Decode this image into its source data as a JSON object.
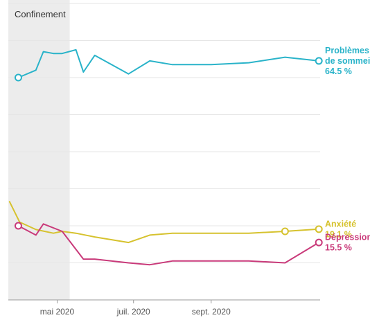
{
  "chart_data": {
    "type": "line",
    "title": "",
    "xlabel": "",
    "ylabel": "",
    "x_range": [
      "2020-03-23",
      "2020-11-27"
    ],
    "y_range": [
      0,
      80
    ],
    "grid": "horizontal",
    "x_ticks": [
      {
        "date": "2020-05-01",
        "label": "mai 2020"
      },
      {
        "date": "2020-07-01",
        "label": "juil. 2020"
      },
      {
        "date": "2020-09-01",
        "label": "sept. 2020"
      }
    ],
    "y_gridlines": [
      10,
      20,
      30,
      40,
      50,
      60,
      70,
      80
    ],
    "annotations": [
      {
        "type": "shaded-period",
        "label": "Confinement",
        "start": "2020-03-23",
        "end": "2020-05-11"
      }
    ],
    "series": [
      {
        "name_lines": [
          "Problèmes",
          "de sommeil"
        ],
        "value_label": "64.5 %",
        "color": "#29b3c9",
        "markers": "first-and-last",
        "x": [
          "2020-03-31",
          "2020-04-14",
          "2020-04-20",
          "2020-04-28",
          "2020-05-05",
          "2020-05-16",
          "2020-05-22",
          "2020-05-31",
          "2020-06-27",
          "2020-07-14",
          "2020-08-01",
          "2020-09-01",
          "2020-10-01",
          "2020-10-30",
          "2020-11-26"
        ],
        "values": [
          60,
          62,
          67,
          66.5,
          66.5,
          67.5,
          61.5,
          66,
          61,
          64.5,
          63.5,
          63.5,
          64,
          65.5,
          64.5
        ]
      },
      {
        "name_lines": [
          "Anxiété"
        ],
        "value_label": "19.1 %",
        "color": "#d6c22e",
        "markers": "last-two",
        "x": [
          "2020-03-24",
          "2020-04-01",
          "2020-04-14",
          "2020-04-28",
          "2020-05-05",
          "2020-05-16",
          "2020-05-31",
          "2020-06-27",
          "2020-07-14",
          "2020-08-01",
          "2020-09-01",
          "2020-10-01",
          "2020-10-30",
          "2020-11-26"
        ],
        "values": [
          26.5,
          21,
          19,
          18,
          18.5,
          18,
          17,
          15.5,
          17.5,
          18,
          18,
          18,
          18.5,
          19.1
        ]
      },
      {
        "name_lines": [
          "Dépression"
        ],
        "value_label": "15.5 %",
        "color": "#c93a7a",
        "markers": "first-and-last",
        "x": [
          "2020-03-31",
          "2020-04-14",
          "2020-04-20",
          "2020-05-05",
          "2020-05-22",
          "2020-05-31",
          "2020-06-27",
          "2020-07-14",
          "2020-08-01",
          "2020-09-01",
          "2020-10-01",
          "2020-10-30",
          "2020-11-26"
        ],
        "values": [
          20,
          17.5,
          20.5,
          18.5,
          11,
          11,
          10,
          9.5,
          10.5,
          10.5,
          10.5,
          10,
          15.5
        ]
      }
    ]
  }
}
